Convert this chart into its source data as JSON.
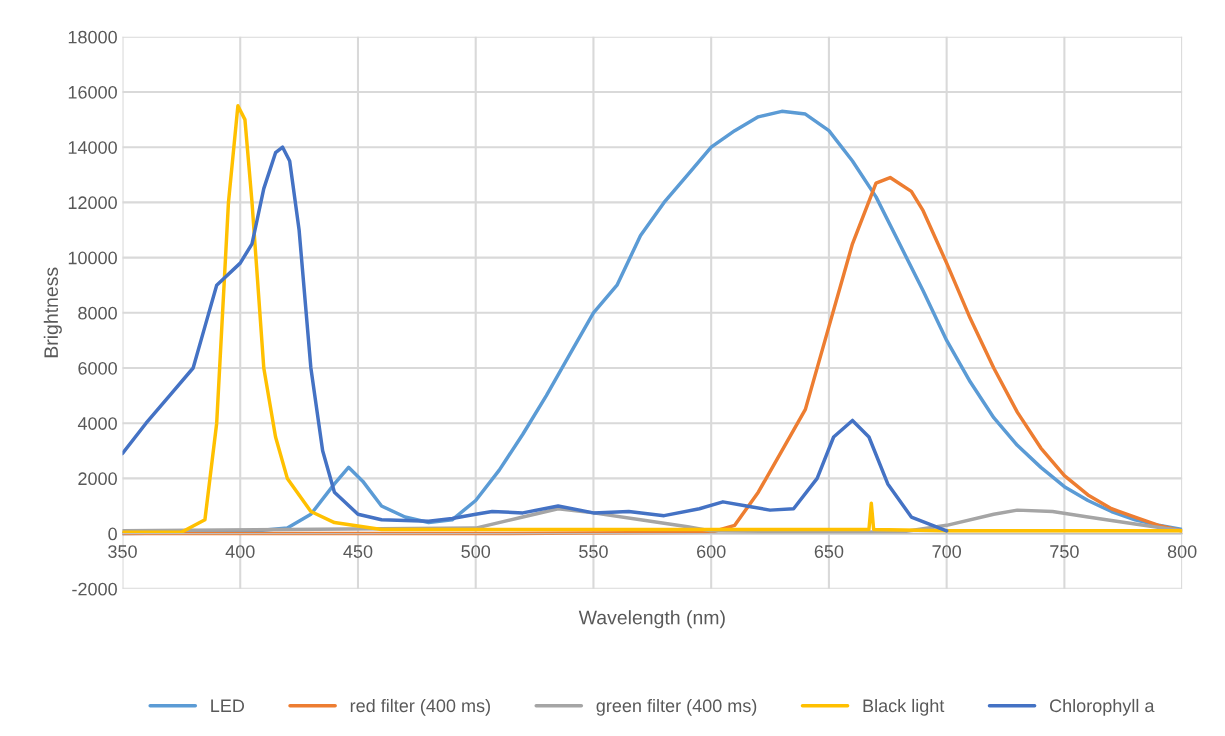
{
  "chart_data": {
    "type": "line",
    "xlabel": "Wavelength (nm)",
    "ylabel": "Brightness",
    "xlim": [
      350,
      800
    ],
    "xticks": [
      350,
      400,
      450,
      500,
      550,
      600,
      650,
      700,
      750,
      800
    ],
    "ylim": [
      -2000,
      18000
    ],
    "yticks": [
      -2000,
      0,
      2000,
      4000,
      6000,
      8000,
      10000,
      12000,
      14000,
      16000,
      18000
    ],
    "grid": true,
    "legend": "bottom",
    "marker": "none",
    "line_style": "solid",
    "series": [
      {
        "name": "LED",
        "color": "#5b9bd5",
        "x": [
          350,
          400,
          420,
          430,
          440,
          446,
          452,
          460,
          470,
          480,
          490,
          500,
          510,
          520,
          530,
          540,
          550,
          560,
          570,
          580,
          590,
          600,
          610,
          620,
          630,
          640,
          650,
          660,
          670,
          680,
          690,
          700,
          710,
          720,
          730,
          740,
          750,
          760,
          770,
          780,
          790,
          800
        ],
        "values": [
          0,
          50,
          200,
          700,
          1800,
          2400,
          1900,
          1000,
          600,
          400,
          500,
          1200,
          2300,
          3600,
          5000,
          6500,
          8000,
          9000,
          10800,
          12000,
          13000,
          14000,
          14600,
          15100,
          15300,
          15200,
          14600,
          13500,
          12200,
          10500,
          8800,
          7000,
          5500,
          4200,
          3200,
          2400,
          1700,
          1200,
          800,
          500,
          300,
          150
        ]
      },
      {
        "name": "red filter (400 ms)",
        "color": "#ed7d31",
        "x": [
          350,
          500,
          600,
          610,
          620,
          630,
          640,
          650,
          660,
          670,
          676,
          685,
          690,
          700,
          710,
          720,
          730,
          740,
          750,
          760,
          770,
          780,
          790,
          800
        ],
        "values": [
          0,
          0,
          50,
          300,
          1500,
          3000,
          4500,
          7500,
          10500,
          12700,
          12900,
          12400,
          11700,
          9800,
          7800,
          6000,
          4400,
          3100,
          2100,
          1400,
          900,
          600,
          300,
          100
        ]
      },
      {
        "name": "green filter (400 ms)",
        "color": "#a5a5a5",
        "x": [
          350,
          500,
          520,
          535,
          550,
          570,
          590,
          600,
          680,
          700,
          720,
          730,
          745,
          760,
          780,
          800
        ],
        "values": [
          100,
          200,
          600,
          900,
          750,
          500,
          250,
          100,
          50,
          300,
          700,
          850,
          800,
          600,
          350,
          100
        ]
      },
      {
        "name": "Black light",
        "color": "#ffc000",
        "x": [
          350,
          375,
          385,
          390,
          395,
          399,
          402,
          405,
          410,
          415,
          420,
          430,
          440,
          460,
          600,
          667,
          668,
          669,
          700,
          800
        ],
        "values": [
          50,
          50,
          500,
          4000,
          12000,
          15500,
          15000,
          12000,
          6000,
          3500,
          2000,
          800,
          400,
          150,
          150,
          150,
          1100,
          150,
          100,
          100
        ]
      },
      {
        "name": "Chlorophyll a",
        "color": "#4472c4",
        "x": [
          350,
          360,
          370,
          380,
          385,
          390,
          400,
          405,
          410,
          415,
          418,
          421,
          425,
          430,
          435,
          440,
          450,
          460,
          480,
          490,
          500,
          507,
          520,
          535,
          550,
          565,
          580,
          595,
          605,
          615,
          625,
          635,
          645,
          652,
          660,
          667,
          675,
          685,
          700
        ],
        "values": [
          2900,
          4000,
          5000,
          6000,
          7500,
          9000,
          9800,
          10500,
          12500,
          13800,
          14000,
          13500,
          11000,
          6000,
          3000,
          1500,
          700,
          500,
          450,
          550,
          700,
          800,
          750,
          1000,
          750,
          800,
          650,
          900,
          1150,
          1000,
          850,
          900,
          2000,
          3500,
          4100,
          3500,
          1800,
          600,
          100
        ]
      }
    ]
  }
}
